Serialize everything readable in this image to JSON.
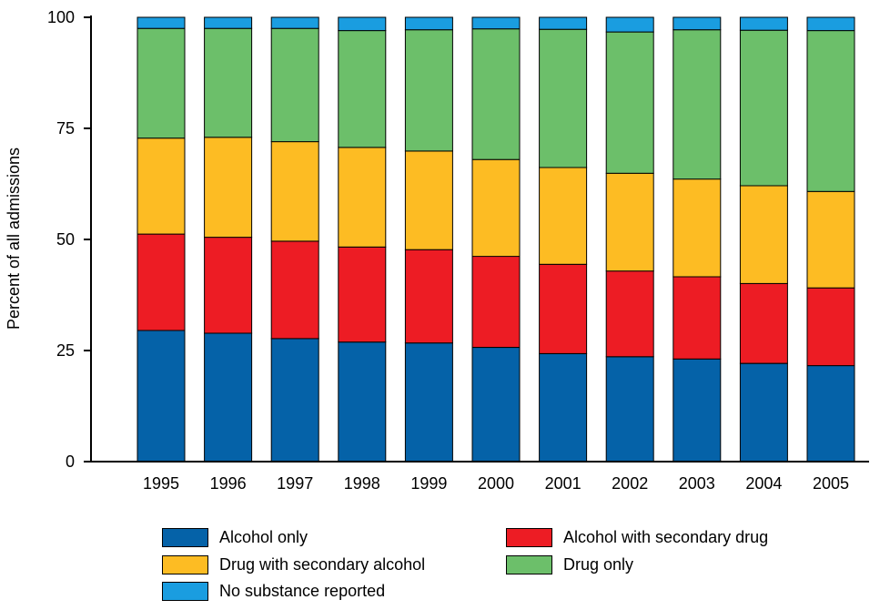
{
  "chart_data": {
    "type": "bar",
    "stacked": true,
    "title": "",
    "xlabel": "",
    "ylabel": "Percent of all admissions",
    "ylim": [
      0,
      100
    ],
    "yticks": [
      0,
      25,
      50,
      75,
      100
    ],
    "grid": false,
    "legend_position": "bottom",
    "categories": [
      "1995",
      "1996",
      "1997",
      "1998",
      "1999",
      "2000",
      "2001",
      "2002",
      "2003",
      "2004",
      "2005"
    ],
    "series": [
      {
        "name": "Alcohol only",
        "color": "#0562a8",
        "values": [
          29.5,
          28.9,
          27.7,
          26.9,
          26.7,
          25.7,
          24.3,
          23.6,
          23.1,
          22.1,
          21.6
        ]
      },
      {
        "name": "Alcohol with secondary drug",
        "color": "#ed1c24",
        "values": [
          21.7,
          21.6,
          21.9,
          21.4,
          21.0,
          20.5,
          20.1,
          19.3,
          18.5,
          18.0,
          17.5
        ]
      },
      {
        "name": "Drug with secondary alcohol",
        "color": "#fdbc23",
        "values": [
          21.6,
          22.5,
          22.4,
          22.4,
          22.2,
          21.8,
          21.8,
          22.0,
          22.0,
          22.0,
          21.7
        ]
      },
      {
        "name": "Drug only",
        "color": "#6cbf6a",
        "values": [
          24.7,
          24.5,
          25.5,
          26.3,
          27.3,
          29.4,
          31.1,
          31.8,
          33.6,
          35.0,
          36.2
        ]
      },
      {
        "name": "No substance reported",
        "color": "#1a9de0",
        "values": [
          2.5,
          2.5,
          2.5,
          3.0,
          2.8,
          2.6,
          2.7,
          3.3,
          2.8,
          2.9,
          3.0
        ]
      }
    ]
  },
  "legend": {
    "order": [
      0,
      3,
      4,
      1,
      2
    ]
  }
}
